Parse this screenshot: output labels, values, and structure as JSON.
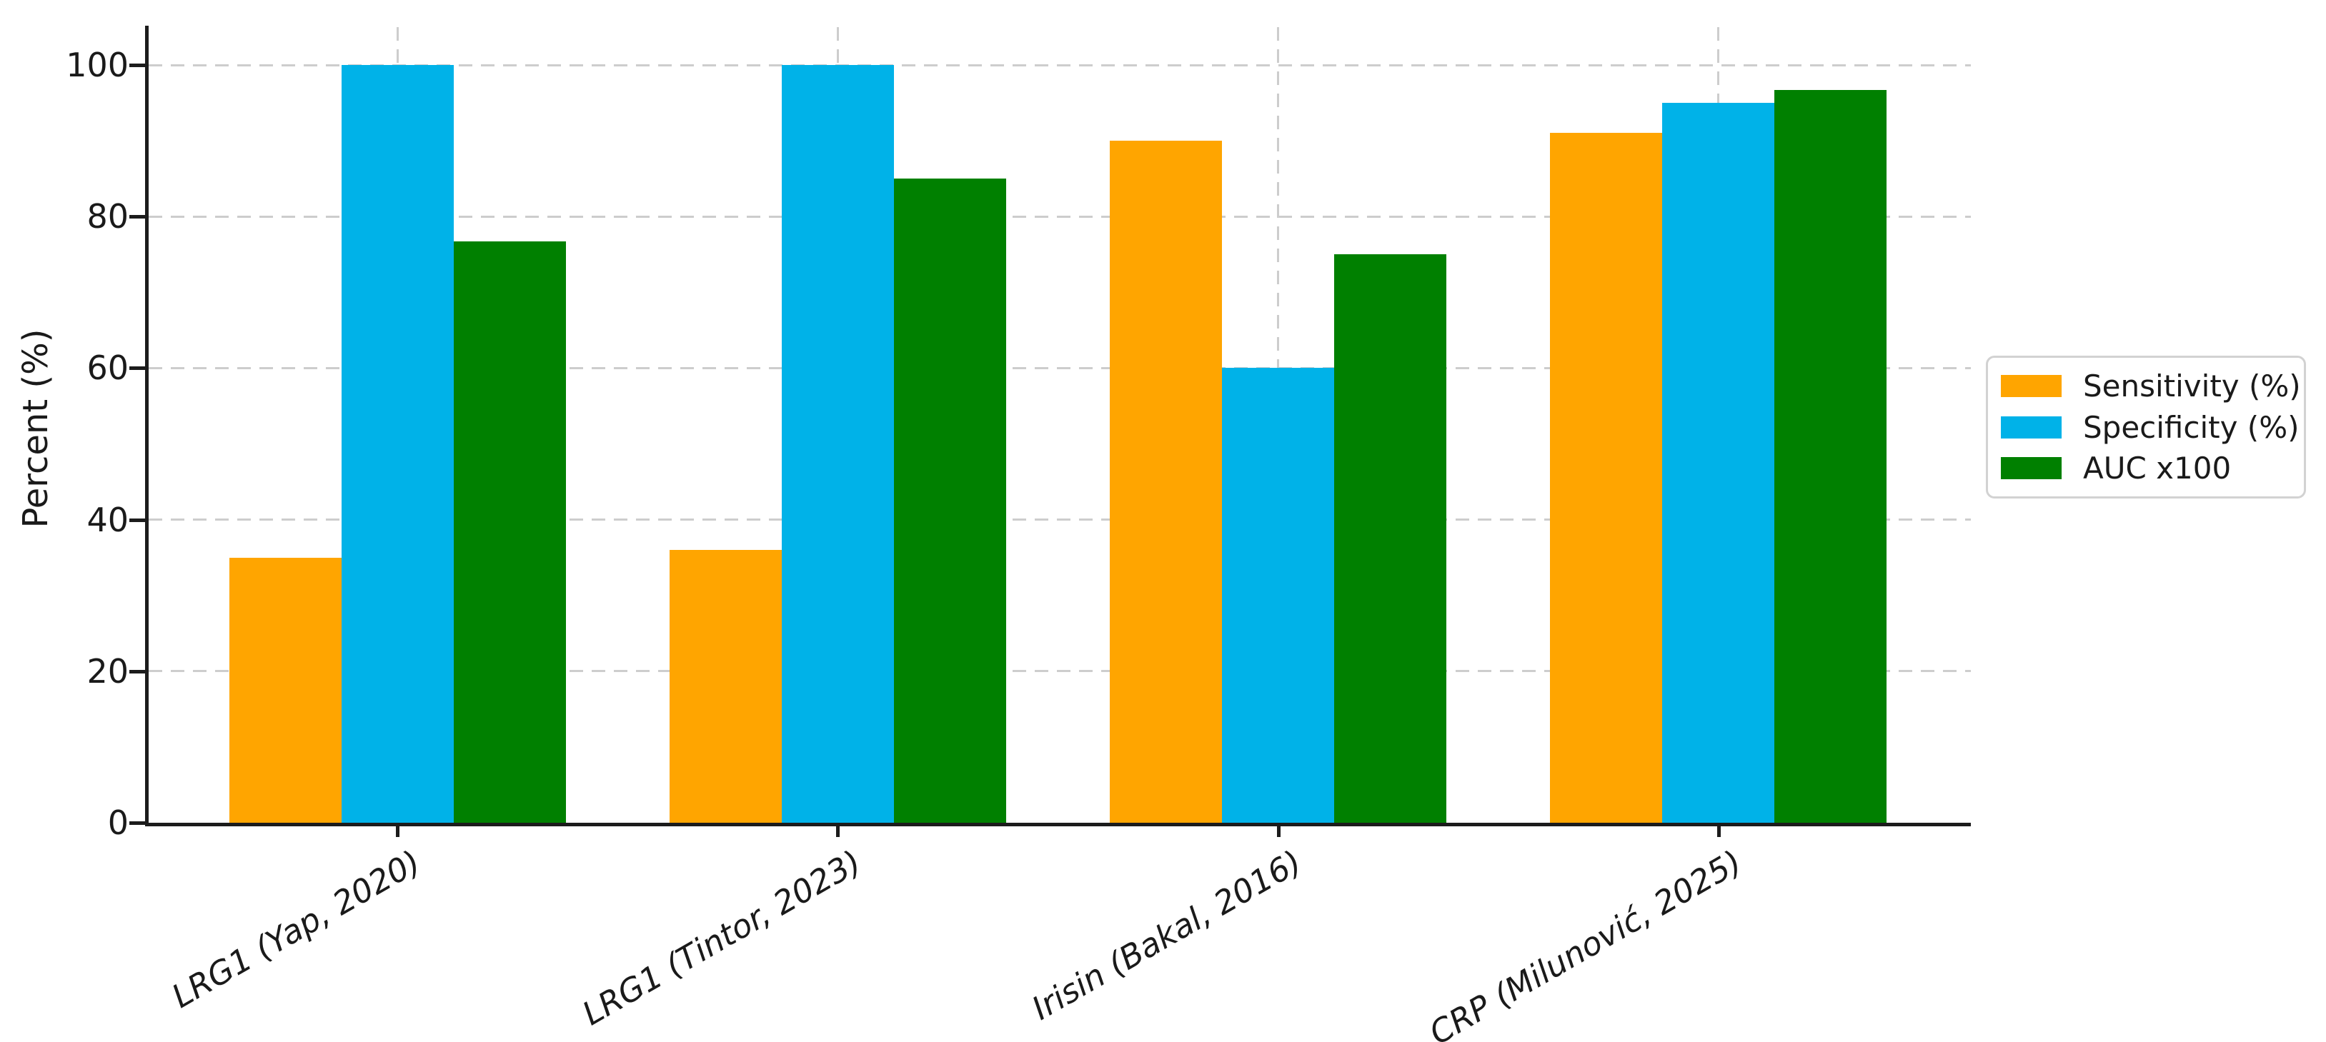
{
  "figure": {
    "background": "#ffffff",
    "text_color": "#1a1a1a",
    "grid_color": "#cdcdcd"
  },
  "chart_data": {
    "type": "bar",
    "title": "",
    "xlabel": "",
    "ylabel": "Percent (%)",
    "categories": [
      "LRG1 (Yap, 2020)",
      "LRG1 (Tintor, 2023)",
      "Irisin (Bakal, 2016)",
      "CRP (Milunović, 2025)"
    ],
    "series": [
      {
        "name": "Sensitivity (%)",
        "color": "#FFA500",
        "values": [
          35,
          36,
          90,
          91
        ]
      },
      {
        "name": "Specificity (%)",
        "color": "#00B2E8",
        "values": [
          100,
          100,
          60,
          95
        ]
      },
      {
        "name": "AUC x100",
        "color": "#008000",
        "values": [
          76.7,
          85,
          75,
          96.7
        ]
      }
    ],
    "yticks": [
      0,
      20,
      40,
      60,
      80,
      100
    ],
    "ylim": [
      0,
      105
    ],
    "grid": "dashed-both-axes",
    "legend_position": "center-right",
    "xtick_label_style": "italic, rotated 30deg, right-anchored"
  }
}
